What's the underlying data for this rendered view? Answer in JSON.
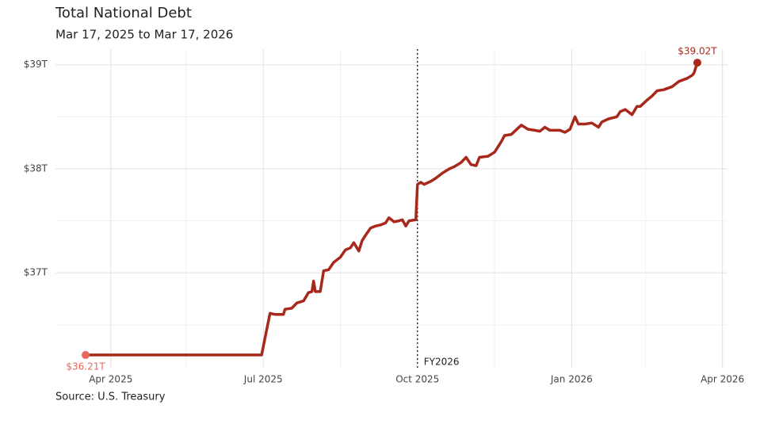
{
  "chart_data": {
    "type": "line",
    "title": "Total National Debt",
    "subtitle": "Mar 17, 2025 to Mar 17, 2026",
    "source": "Source: U.S. Treasury",
    "x": [
      "2025-03-17",
      "2025-05-01",
      "2025-06-30",
      "2025-07-05",
      "2025-07-08",
      "2025-07-13",
      "2025-07-14",
      "2025-07-18",
      "2025-07-21",
      "2025-07-25",
      "2025-07-28",
      "2025-07-30",
      "2025-07-31",
      "2025-08-01",
      "2025-08-04",
      "2025-08-06",
      "2025-08-09",
      "2025-08-12",
      "2025-08-16",
      "2025-08-19",
      "2025-08-22",
      "2025-08-24",
      "2025-08-27",
      "2025-08-29",
      "2025-08-31",
      "2025-09-03",
      "2025-09-06",
      "2025-09-09",
      "2025-09-12",
      "2025-09-14",
      "2025-09-17",
      "2025-09-20",
      "2025-09-22",
      "2025-09-24",
      "2025-09-26",
      "2025-09-30",
      "2025-10-01",
      "2025-10-03",
      "2025-10-05",
      "2025-10-09",
      "2025-10-12",
      "2025-10-16",
      "2025-10-20",
      "2025-10-23",
      "2025-10-27",
      "2025-10-30",
      "2025-11-02",
      "2025-11-05",
      "2025-11-07",
      "2025-11-12",
      "2025-11-16",
      "2025-11-20",
      "2025-11-22",
      "2025-11-26",
      "2025-11-28",
      "2025-12-02",
      "2025-12-06",
      "2025-12-10",
      "2025-12-13",
      "2025-12-16",
      "2025-12-19",
      "2025-12-25",
      "2025-12-28",
      "2025-12-31",
      "2026-01-03",
      "2026-01-05",
      "2026-01-09",
      "2026-01-13",
      "2026-01-17",
      "2026-01-19",
      "2026-01-23",
      "2026-01-28",
      "2026-01-30",
      "2026-02-02",
      "2026-02-06",
      "2026-02-09",
      "2026-02-11",
      "2026-02-15",
      "2026-02-18",
      "2026-02-21",
      "2026-02-25",
      "2026-03-02",
      "2026-03-06",
      "2026-03-11",
      "2026-03-14",
      "2026-03-15",
      "2026-03-17"
    ],
    "series": [
      {
        "name": "Total National Debt",
        "color": "#a8291c",
        "values": [
          36.21,
          36.21,
          36.21,
          36.61,
          36.6,
          36.6,
          36.65,
          36.66,
          36.71,
          36.73,
          36.81,
          36.82,
          36.92,
          36.82,
          36.82,
          37.02,
          37.03,
          37.1,
          37.15,
          37.22,
          37.24,
          37.29,
          37.21,
          37.31,
          37.36,
          37.43,
          37.45,
          37.46,
          37.48,
          37.53,
          37.49,
          37.5,
          37.51,
          37.45,
          37.5,
          37.51,
          37.85,
          37.87,
          37.85,
          37.88,
          37.91,
          37.96,
          38.0,
          38.02,
          38.06,
          38.11,
          38.04,
          38.03,
          38.11,
          38.12,
          38.16,
          38.26,
          38.32,
          38.33,
          38.36,
          38.42,
          38.38,
          38.37,
          38.36,
          38.4,
          38.37,
          38.37,
          38.35,
          38.38,
          38.5,
          38.43,
          38.43,
          38.44,
          38.4,
          38.45,
          38.48,
          38.5,
          38.55,
          38.57,
          38.52,
          38.6,
          38.6,
          38.66,
          38.7,
          38.75,
          38.76,
          38.79,
          38.84,
          38.87,
          38.9,
          38.92,
          39.02
        ],
        "value_labels": [
          "$36.21T",
          null,
          null,
          null,
          null,
          null,
          null,
          null,
          null,
          null,
          null,
          null,
          null,
          null,
          null,
          null,
          null,
          null,
          null,
          null,
          null,
          null,
          null,
          null,
          null,
          null,
          null,
          null,
          null,
          null,
          null,
          null,
          null,
          null,
          null,
          null,
          null,
          null,
          null,
          null,
          null,
          null,
          null,
          null,
          null,
          null,
          null,
          null,
          null,
          null,
          null,
          null,
          null,
          null,
          null,
          null,
          null,
          null,
          null,
          null,
          null,
          null,
          null,
          null,
          null,
          null,
          null,
          null,
          null,
          null,
          null,
          null,
          null,
          null,
          null,
          null,
          null,
          null,
          null,
          null,
          null,
          null,
          null,
          null,
          null,
          null,
          "$39.02T"
        ],
        "start_color": "#e8675a"
      }
    ],
    "annotations": [
      {
        "x": "2025-10-01",
        "label": "FY2026"
      }
    ],
    "xlim": [
      "2025-02-27",
      "2026-04-04"
    ],
    "xticks": [
      {
        "value": "2025-04-01",
        "label": "Apr 2025"
      },
      {
        "value": "2025-07-01",
        "label": "Jul 2025"
      },
      {
        "value": "2025-10-01",
        "label": "Oct 2025"
      },
      {
        "value": "2026-01-01",
        "label": "Jan 2026"
      },
      {
        "value": "2026-04-01",
        "label": "Apr 2026"
      }
    ],
    "minor_xticks": [
      "2025-05-16",
      "2025-08-16",
      "2025-11-16",
      "2026-02-14"
    ],
    "ylim": [
      36.08,
      39.15
    ],
    "yticks": [
      {
        "value": 37,
        "label": "$37T"
      },
      {
        "value": 38,
        "label": "$38T"
      },
      {
        "value": 39,
        "label": "$39T"
      }
    ],
    "minor_yticks": [
      36.5,
      37.5,
      38.5
    ],
    "grid": true
  }
}
